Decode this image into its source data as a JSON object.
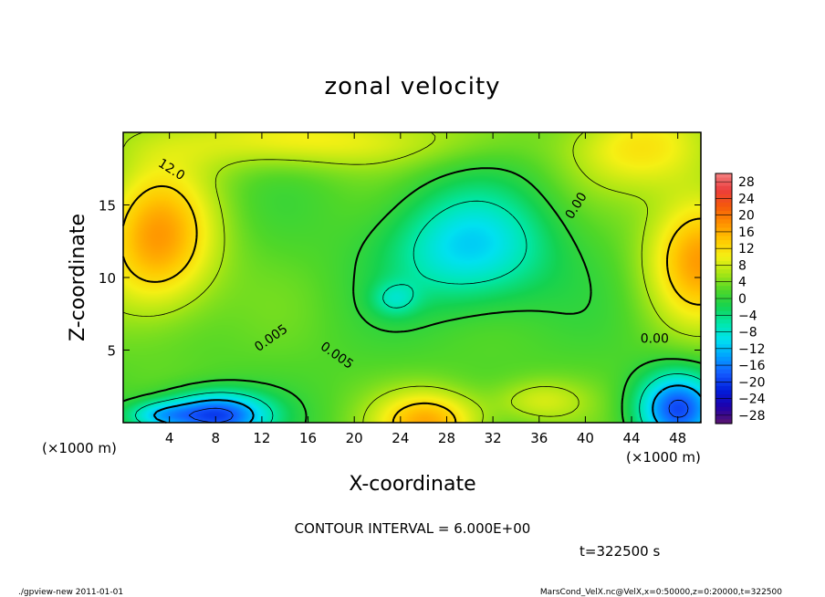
{
  "chart_data": {
    "type": "heatmap",
    "title": "zonal velocity",
    "xlabel": "X-coordinate",
    "ylabel": "Z-coordinate",
    "x_unit_left": "(×1000 m)",
    "x_unit_right": "(×1000 m)",
    "xlim": [
      0,
      50
    ],
    "ylim": [
      0,
      20
    ],
    "x_ticks": [
      4,
      8,
      12,
      16,
      20,
      24,
      28,
      32,
      36,
      40,
      44,
      48
    ],
    "y_ticks": [
      5,
      10,
      15
    ],
    "colorbar_ticks": [
      28,
      24,
      20,
      16,
      12,
      8,
      4,
      0,
      -4,
      -8,
      -12,
      -16,
      -20,
      -24,
      -28
    ],
    "colorbar_range": [
      -30,
      30
    ],
    "contour_labels": [
      {
        "text": "12.0",
        "x": 4,
        "y": 17.2,
        "angle": 32
      },
      {
        "text": "0.00",
        "x": 39.5,
        "y": 14.8,
        "angle": -58
      },
      {
        "text": "0.00",
        "x": 46,
        "y": 5.5,
        "angle": 0
      },
      {
        "text": "0.005",
        "x": 13,
        "y": 5.6,
        "angle": -35
      },
      {
        "text": "0.005",
        "x": 18.3,
        "y": 4.4,
        "angle": 35
      }
    ],
    "contour_interval_text": "CONTOUR INTERVAL = 6.000E+00",
    "time_text": "t=322500 s",
    "field_features": [
      {
        "x": 3,
        "y": 12.5,
        "amp": 15,
        "sx": 5,
        "sy": 5
      },
      {
        "x": 50,
        "y": 11.5,
        "amp": 15,
        "sx": 4.5,
        "sy": 4.5
      },
      {
        "x": 26.5,
        "y": 0,
        "amp": 14,
        "sx": 4.5,
        "sy": 2.2
      },
      {
        "x": 30,
        "y": 12,
        "amp": -13,
        "sx": 7,
        "sy": 4
      },
      {
        "x": 23.5,
        "y": 8.5,
        "amp": -6,
        "sx": 2,
        "sy": 1.2
      },
      {
        "x": 8,
        "y": 0.5,
        "amp": -22,
        "sx": 4.5,
        "sy": 1.6
      },
      {
        "x": 3,
        "y": 0.5,
        "amp": -10,
        "sx": 3,
        "sy": 1
      },
      {
        "x": 48,
        "y": 1,
        "amp": -20,
        "sx": 3.5,
        "sy": 2.5
      },
      {
        "x": 16,
        "y": 19.5,
        "amp": 8,
        "sx": 14,
        "sy": 2
      },
      {
        "x": 45,
        "y": 19,
        "amp": 9,
        "sx": 6,
        "sy": 3
      },
      {
        "x": 36,
        "y": 1.5,
        "amp": 6,
        "sx": 4,
        "sy": 1.5
      }
    ]
  },
  "footer": {
    "left": "./gpview-new   2011-01-01",
    "right": "MarsCond_VelX.nc@VelX,x=0:50000,z=0:20000,t=322500"
  }
}
